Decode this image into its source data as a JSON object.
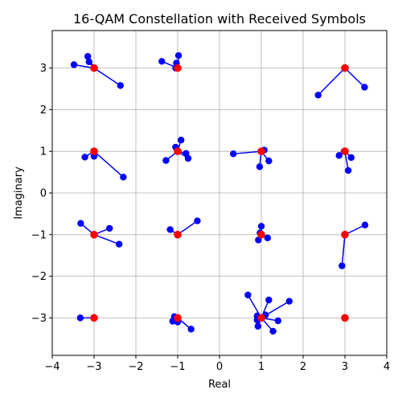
{
  "chart_data": {
    "type": "scatter",
    "title": "16-QAM Constellation with Received Symbols",
    "xlabel": "Real",
    "ylabel": "Imaginary",
    "xlim": [
      -4,
      4
    ],
    "ylim": [
      -3.9,
      3.9
    ],
    "xticks": [
      -4,
      -3,
      -2,
      -1,
      0,
      1,
      2,
      3,
      4
    ],
    "yticks": [
      -3,
      -2,
      -1,
      0,
      1,
      2,
      3
    ],
    "xtick_labels": [
      "−4",
      "−3",
      "−2",
      "−1",
      "0",
      "1",
      "2",
      "3",
      "4"
    ],
    "ytick_labels": [
      "−3",
      "−2",
      "−1",
      "0",
      "1",
      "2",
      "3"
    ],
    "grid": true,
    "colors": {
      "received": "#0000ff",
      "ideal": "#ff0000",
      "grid": "#b0b0b0"
    },
    "groups": [
      {
        "ideal": [
          -3,
          3
        ],
        "received": [
          [
            -3.15,
            3.28
          ],
          [
            -3.12,
            3.15
          ],
          [
            -3.48,
            3.08
          ],
          [
            -2.37,
            2.58
          ]
        ]
      },
      {
        "ideal": [
          -1,
          3
        ],
        "received": [
          [
            -1.38,
            3.16
          ],
          [
            -0.98,
            3.3
          ],
          [
            -1.03,
            3.12
          ],
          [
            -1.05,
            3.0
          ]
        ]
      },
      {
        "ideal": [
          3,
          3
        ],
        "received": [
          [
            2.36,
            2.35
          ],
          [
            3.47,
            2.54
          ]
        ]
      },
      {
        "ideal": [
          -3,
          1
        ],
        "received": [
          [
            -3.22,
            0.86
          ],
          [
            -3.0,
            0.88
          ],
          [
            -2.3,
            0.38
          ]
        ]
      },
      {
        "ideal": [
          -1,
          1
        ],
        "received": [
          [
            -1.28,
            0.78
          ],
          [
            -1.05,
            1.1
          ],
          [
            -0.92,
            1.27
          ],
          [
            -0.8,
            0.95
          ],
          [
            -0.75,
            0.83
          ]
        ]
      },
      {
        "ideal": [
          1,
          1
        ],
        "received": [
          [
            0.33,
            0.94
          ],
          [
            1.07,
            1.03
          ],
          [
            1.18,
            0.77
          ],
          [
            0.96,
            0.63
          ]
        ]
      },
      {
        "ideal": [
          3,
          1
        ],
        "received": [
          [
            2.86,
            0.9
          ],
          [
            3.15,
            0.85
          ],
          [
            3.08,
            0.54
          ],
          [
            2.98,
            1.0
          ]
        ]
      },
      {
        "ideal": [
          -3,
          -1
        ],
        "received": [
          [
            -3.32,
            -0.73
          ],
          [
            -2.63,
            -0.85
          ],
          [
            -2.4,
            -1.23
          ],
          [
            -3.0,
            -1.0
          ]
        ]
      },
      {
        "ideal": [
          -1,
          -1
        ],
        "received": [
          [
            -1.18,
            -0.88
          ],
          [
            -0.53,
            -0.67
          ]
        ]
      },
      {
        "ideal": [
          1,
          -1
        ],
        "received": [
          [
            1.0,
            -0.8
          ],
          [
            0.97,
            -0.96
          ],
          [
            0.93,
            -1.13
          ],
          [
            1.15,
            -1.08
          ],
          [
            1.0,
            -1.0
          ]
        ]
      },
      {
        "ideal": [
          3,
          -1
        ],
        "received": [
          [
            3.48,
            -0.77
          ],
          [
            2.93,
            -1.75
          ]
        ]
      },
      {
        "ideal": [
          -3,
          -3
        ],
        "received": [
          [
            -3.33,
            -3.0
          ]
        ]
      },
      {
        "ideal": [
          -1,
          -3
        ],
        "received": [
          [
            -1.12,
            -3.08
          ],
          [
            -1.08,
            -2.97
          ],
          [
            -1.0,
            -3.1
          ],
          [
            -0.68,
            -3.27
          ]
        ]
      },
      {
        "ideal": [
          1,
          -3
        ],
        "received": [
          [
            0.68,
            -2.45
          ],
          [
            0.9,
            -2.95
          ],
          [
            0.9,
            -3.05
          ],
          [
            0.92,
            -3.2
          ],
          [
            1.18,
            -2.57
          ],
          [
            1.1,
            -2.93
          ],
          [
            1.28,
            -3.32
          ],
          [
            1.4,
            -3.07
          ],
          [
            1.67,
            -2.6
          ]
        ]
      },
      {
        "ideal": [
          3,
          3
        ],
        "received": []
      },
      {
        "ideal": [
          3,
          -3
        ],
        "received": []
      }
    ]
  }
}
